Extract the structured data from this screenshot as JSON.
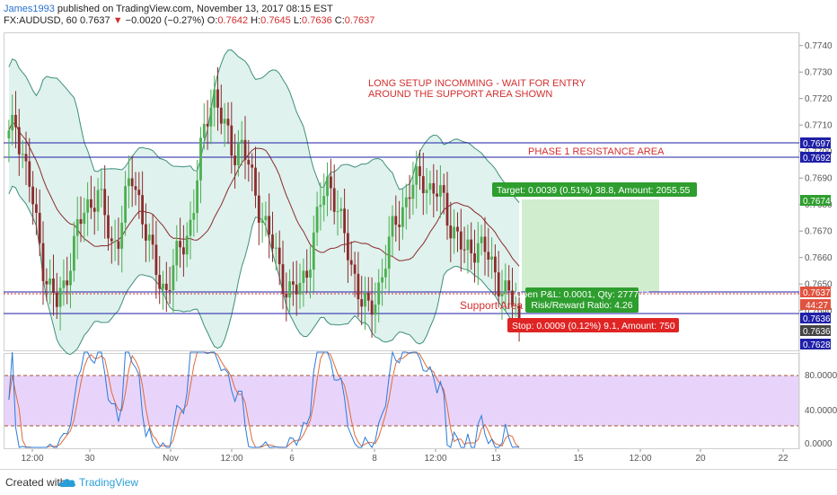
{
  "header": {
    "author": "James1993",
    "published": " published on TradingView.com, November 13, 2017 08:15 EST",
    "symbol": "FX:AUDUSD, 60",
    "last": "0.7637",
    "change": "−0.0020 (−0.27%)",
    "open_label": "O:",
    "open": "0.7642",
    "high_label": "H:",
    "high": "0.7645",
    "low_label": "L:",
    "low": "0.7636",
    "close_label": "C:",
    "close": "0.7637"
  },
  "annotations": {
    "setup_line1": "LONG SETUP INCOMMING - WAIT FOR ENTRY",
    "setup_line2": "AROUND THE SUPPORT AREA SHOWN",
    "resistance": "PHASE 1 RESISTANCE AREA",
    "support": "Support Area"
  },
  "position": {
    "target": "Target: 0.0039 (0.51%) 38.8, Amount: 2055.55",
    "open_pl": "Open P&L: 0.0001, Qty: 277777",
    "risk_reward": "Risk/Reward Ratio: 4.26",
    "stop": "Stop: 0.0009 (0.12%) 9.1, Amount: 750"
  },
  "price_axis": {
    "ticks": [
      "0.7740",
      "0.7730",
      "0.7720",
      "0.7710",
      "0.7700",
      "0.7690",
      "0.7680",
      "0.7670",
      "0.7660",
      "0.7650",
      "0.7640"
    ],
    "badges": [
      {
        "label": "0.7697",
        "kind": "resistance"
      },
      {
        "label": "0.7692",
        "kind": "resistance"
      },
      {
        "label": "0.7674",
        "kind": "target"
      },
      {
        "label": "0.7637",
        "kind": "last"
      },
      {
        "label": "44:27",
        "kind": "countdown"
      },
      {
        "label": "0.7636",
        "kind": "support"
      },
      {
        "label": "0.7636",
        "kind": "stop-entry"
      },
      {
        "label": "0.7628",
        "kind": "stop"
      }
    ]
  },
  "osc_axis": {
    "ticks": [
      "80.0000",
      "40.0000",
      "0.0000"
    ]
  },
  "time_axis": {
    "labels": [
      "12:00",
      "30",
      "Nov",
      "12:00",
      "6",
      "8",
      "12:00",
      "13",
      "15",
      "12:00",
      "20",
      "22"
    ]
  },
  "footer": {
    "created_with": "Created with",
    "brand": "TradingView"
  },
  "colors": {
    "up": "#4caf50",
    "down": "#8b2c2c",
    "bands": "#3f8f7a",
    "band_fill": "#dff2ee",
    "basis": "#8b2c2c",
    "resistance_line": "#1f1fa8",
    "target_fill": "#c8ebc4",
    "target_badge": "#2e9e2e",
    "stop_badge": "#e02424",
    "osc_fill": "#e8d4fb",
    "osc_k": "#2b7bd8",
    "osc_d": "#e06a3a"
  },
  "chart_data": {
    "type": "candlestick",
    "symbol": "FX:AUDUSD",
    "interval": "60",
    "x_labels": [
      "12:00",
      "30",
      "Nov",
      "12:00",
      "6",
      "8",
      "12:00",
      "13",
      "15",
      "12:00",
      "20",
      "22"
    ],
    "ylim": [
      0.7625,
      0.7745
    ],
    "levels": {
      "resistance_top": 0.7697,
      "resistance_bottom": 0.7692,
      "support_top": 0.7637,
      "support_bottom": 0.7628,
      "target": 0.7674,
      "entry": 0.7636,
      "stop": 0.7628
    },
    "close_path": [
      0.7705,
      0.7711,
      0.77,
      0.7688,
      0.7672,
      0.7658,
      0.7649,
      0.7642,
      0.7648,
      0.766,
      0.767,
      0.7676,
      0.7681,
      0.7686,
      0.7676,
      0.7664,
      0.7668,
      0.768,
      0.769,
      0.7684,
      0.7672,
      0.766,
      0.7652,
      0.7648,
      0.7654,
      0.7662,
      0.7668,
      0.7676,
      0.7696,
      0.7712,
      0.7724,
      0.7714,
      0.7706,
      0.77,
      0.7704,
      0.7696,
      0.7686,
      0.7678,
      0.767,
      0.7662,
      0.7654,
      0.7648,
      0.7646,
      0.765,
      0.7658,
      0.767,
      0.7682,
      0.769,
      0.7682,
      0.767,
      0.766,
      0.7652,
      0.7643,
      0.7638,
      0.7646,
      0.7656,
      0.7666,
      0.7674,
      0.768,
      0.7686,
      0.7688,
      0.769,
      0.7686,
      0.7684,
      0.768,
      0.7672,
      0.7668,
      0.766,
      0.7664,
      0.7666,
      0.7662,
      0.7656,
      0.7652,
      0.7647,
      0.7643,
      0.7637
    ],
    "oscillator": {
      "ylim": [
        0,
        100
      ],
      "upper_band": 80,
      "lower_band": 20,
      "ticks": [
        80,
        40,
        0
      ]
    }
  }
}
